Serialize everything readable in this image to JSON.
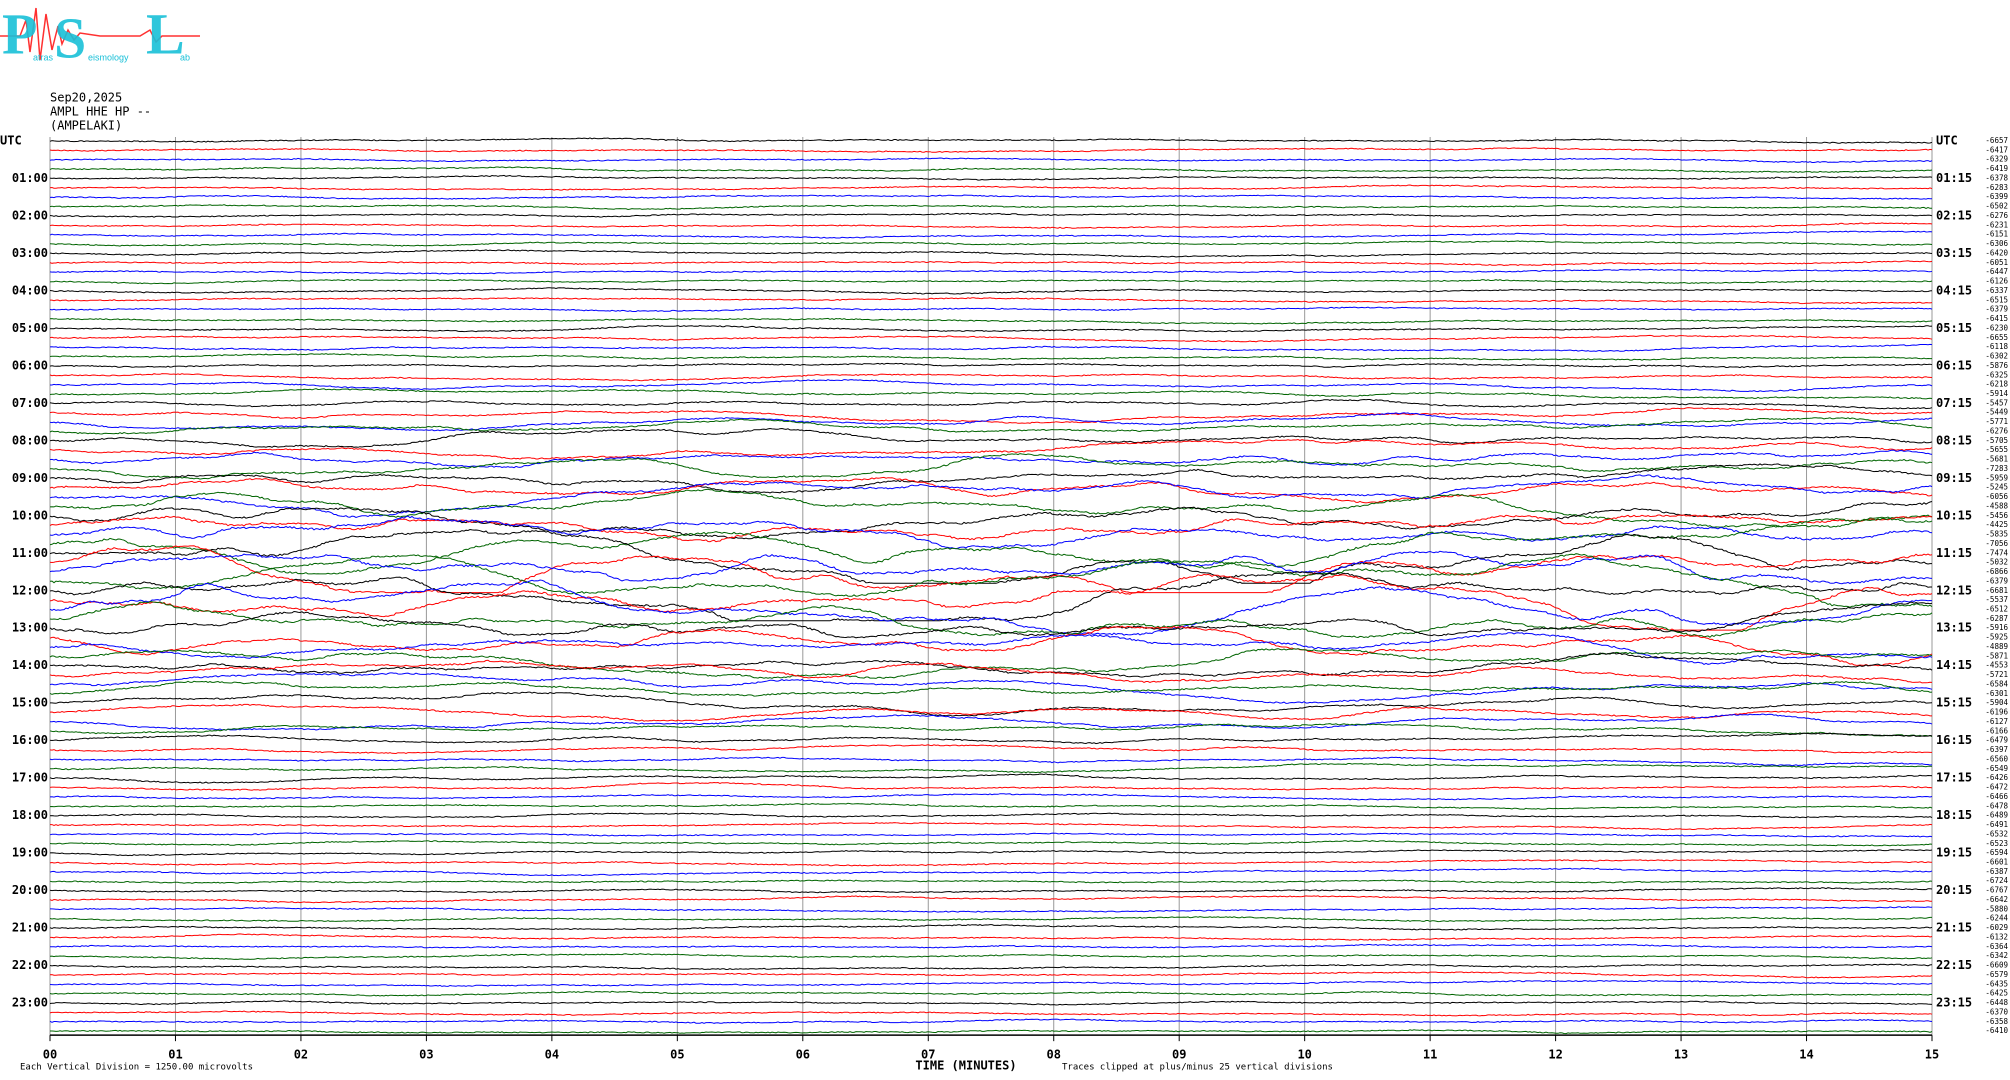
{
  "logo": {
    "letters": [
      "P",
      "S",
      "L"
    ],
    "words": [
      "atras",
      "eismology",
      "ab"
    ]
  },
  "chart_data": {
    "type": "helicorder",
    "header": [
      "Sep20,2025",
      "AMPL HHE HP --",
      "(AMPELAKI)"
    ],
    "left_labels": [
      "UTC",
      "01:00",
      "02:00",
      "03:00",
      "04:00",
      "05:00",
      "06:00",
      "07:00",
      "08:00",
      "09:00",
      "10:00",
      "11:00",
      "12:00",
      "13:00",
      "14:00",
      "15:00",
      "16:00",
      "17:00",
      "18:00",
      "19:00",
      "20:00",
      "21:00",
      "22:00",
      "23:00"
    ],
    "right_labels": [
      "UTC",
      "01:15",
      "02:15",
      "03:15",
      "04:15",
      "05:15",
      "06:15",
      "07:15",
      "08:15",
      "09:15",
      "10:15",
      "11:15",
      "12:15",
      "13:15",
      "14:15",
      "15:15",
      "16:15",
      "17:15",
      "18:15",
      "19:15",
      "20:15",
      "21:15",
      "22:15",
      "23:15"
    ],
    "trace_colors": [
      "#000000",
      "#ff0000",
      "#0000ff",
      "#006400"
    ],
    "trace_offsets": [
      -6657,
      -6417,
      -6329,
      -6419,
      -6378,
      -6283,
      -6399,
      -6502,
      -6276,
      -6231,
      -6151,
      -6306,
      -6420,
      -6051,
      -6447,
      -6126,
      -6337,
      -6515,
      -6379,
      -6415,
      -6230,
      -6655,
      -6118,
      -6302,
      -5876,
      -6325,
      -6218,
      -5914,
      -5457,
      -5449,
      -5771,
      -6276,
      -5705,
      -5655,
      -5681,
      -7283,
      -5959,
      -5245,
      -6056,
      -4588,
      -5456,
      -4425,
      -5835,
      -7056,
      -7474,
      -5032,
      -6866,
      -6379,
      -6681,
      -5537,
      -6512,
      -6287,
      -5916,
      -5925,
      -4889,
      -5871,
      -4553,
      -5721,
      -6584,
      -6301,
      -5904,
      -6196,
      -6127,
      -6166,
      -6479,
      -6397,
      -6560,
      -6549,
      -6426,
      -6472,
      -6466,
      -6478,
      -6489,
      -6491,
      -6532,
      -6523,
      -6594,
      -6601,
      -6387,
      -6724,
      -6767,
      -6642,
      -5880,
      -6244,
      -6029,
      -6132,
      -6364,
      -6342,
      -6609,
      -6579,
      -6435,
      -6425,
      -6448,
      -6370,
      -6358,
      -6410
    ],
    "xlabel": "TIME (MINUTES)",
    "xlim": [
      0,
      15
    ],
    "xticks": [
      {
        "value": 0,
        "label": "00"
      },
      {
        "value": 1,
        "label": "01"
      },
      {
        "value": 2,
        "label": "02"
      },
      {
        "value": 3,
        "label": "03"
      },
      {
        "value": 4,
        "label": "04"
      },
      {
        "value": 5,
        "label": "05"
      },
      {
        "value": 6,
        "label": "06"
      },
      {
        "value": 7,
        "label": "07"
      },
      {
        "value": 8,
        "label": "08"
      },
      {
        "value": 9,
        "label": "09"
      },
      {
        "value": 10,
        "label": "10"
      },
      {
        "value": 11,
        "label": "11"
      },
      {
        "value": 12,
        "label": "12"
      },
      {
        "value": 13,
        "label": "13"
      },
      {
        "value": 14,
        "label": "14"
      },
      {
        "value": 15,
        "label": "15"
      }
    ],
    "grid": true,
    "notes": [
      "Each Vertical Division = 1250.00 microvolts",
      "Traces clipped at plus/minus 25 vertical divisions"
    ]
  }
}
